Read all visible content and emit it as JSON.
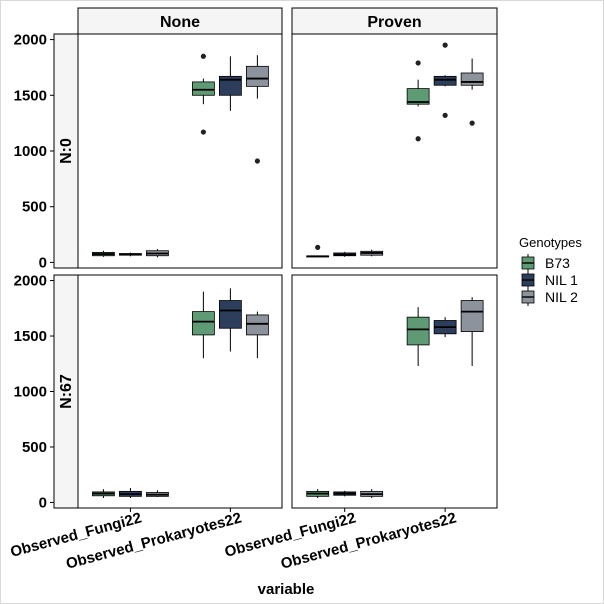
{
  "chart_data": {
    "type": "box",
    "xlabel": "variable",
    "facet_cols": [
      "None",
      "Proven"
    ],
    "facet_rows": [
      "N:0",
      "N:67"
    ],
    "categories": [
      "Observed_Fungi22",
      "Observed_Prokaryotes22"
    ],
    "y_ticks": [
      0,
      500,
      1000,
      1500,
      2000
    ],
    "ylim": [
      -50,
      2050
    ],
    "legend": {
      "title": "Genotypes",
      "position": "right",
      "entries": [
        {
          "name": "B73",
          "color": "#5e9a74"
        },
        {
          "name": "NIL 1",
          "color": "#2c3e5c"
        },
        {
          "name": "NIL 2",
          "color": "#8d939c"
        }
      ]
    },
    "panels": [
      {
        "col": "None",
        "row": "N:0",
        "boxes": [
          {
            "category": "Observed_Fungi22",
            "genotype": "B73",
            "min": 50,
            "q1": 60,
            "median": 75,
            "q3": 90,
            "max": 105,
            "outliers": []
          },
          {
            "category": "Observed_Fungi22",
            "genotype": "NIL 1",
            "min": 55,
            "q1": 65,
            "median": 72,
            "q3": 80,
            "max": 88,
            "outliers": []
          },
          {
            "category": "Observed_Fungi22",
            "genotype": "NIL 2",
            "min": 45,
            "q1": 60,
            "median": 80,
            "q3": 105,
            "max": 120,
            "outliers": []
          },
          {
            "category": "Observed_Prokaryotes22",
            "genotype": "B73",
            "min": 1420,
            "q1": 1500,
            "median": 1550,
            "q3": 1620,
            "max": 1650,
            "outliers": [
              1850,
              1170
            ]
          },
          {
            "category": "Observed_Prokaryotes22",
            "genotype": "NIL 1",
            "min": 1360,
            "q1": 1500,
            "median": 1640,
            "q3": 1670,
            "max": 1850,
            "outliers": []
          },
          {
            "category": "Observed_Prokaryotes22",
            "genotype": "NIL 2",
            "min": 1470,
            "q1": 1580,
            "median": 1650,
            "q3": 1760,
            "max": 1860,
            "outliers": [
              910
            ]
          }
        ]
      },
      {
        "col": "Proven",
        "row": "N:0",
        "boxes": [
          {
            "category": "Observed_Fungi22",
            "genotype": "B73",
            "min": 55,
            "q1": 55,
            "median": 55,
            "q3": 58,
            "max": 60,
            "outliers": [
              135
            ]
          },
          {
            "category": "Observed_Fungi22",
            "genotype": "NIL 1",
            "min": 50,
            "q1": 60,
            "median": 70,
            "q3": 85,
            "max": 95,
            "outliers": []
          },
          {
            "category": "Observed_Fungi22",
            "genotype": "NIL 2",
            "min": 55,
            "q1": 65,
            "median": 85,
            "q3": 100,
            "max": 115,
            "outliers": []
          },
          {
            "category": "Observed_Prokaryotes22",
            "genotype": "B73",
            "min": 1400,
            "q1": 1420,
            "median": 1440,
            "q3": 1560,
            "max": 1640,
            "outliers": [
              1790,
              1110
            ]
          },
          {
            "category": "Observed_Prokaryotes22",
            "genotype": "NIL 1",
            "min": 1580,
            "q1": 1590,
            "median": 1640,
            "q3": 1670,
            "max": 1680,
            "outliers": [
              1950,
              1320
            ]
          },
          {
            "category": "Observed_Prokaryotes22",
            "genotype": "NIL 2",
            "min": 1550,
            "q1": 1590,
            "median": 1620,
            "q3": 1700,
            "max": 1830,
            "outliers": [
              1250
            ]
          }
        ]
      },
      {
        "col": "None",
        "row": "N:67",
        "boxes": [
          {
            "category": "Observed_Fungi22",
            "genotype": "B73",
            "min": 40,
            "q1": 60,
            "median": 80,
            "q3": 95,
            "max": 120,
            "outliers": []
          },
          {
            "category": "Observed_Fungi22",
            "genotype": "NIL 1",
            "min": 40,
            "q1": 55,
            "median": 75,
            "q3": 100,
            "max": 130,
            "outliers": []
          },
          {
            "category": "Observed_Fungi22",
            "genotype": "NIL 2",
            "min": 50,
            "q1": 55,
            "median": 70,
            "q3": 90,
            "max": 110,
            "outliers": []
          },
          {
            "category": "Observed_Prokaryotes22",
            "genotype": "B73",
            "min": 1300,
            "q1": 1510,
            "median": 1630,
            "q3": 1720,
            "max": 1900,
            "outliers": []
          },
          {
            "category": "Observed_Prokaryotes22",
            "genotype": "NIL 1",
            "min": 1360,
            "q1": 1570,
            "median": 1730,
            "q3": 1820,
            "max": 1930,
            "outliers": []
          },
          {
            "category": "Observed_Prokaryotes22",
            "genotype": "NIL 2",
            "min": 1300,
            "q1": 1510,
            "median": 1610,
            "q3": 1690,
            "max": 1720,
            "outliers": []
          }
        ]
      },
      {
        "col": "Proven",
        "row": "N:67",
        "boxes": [
          {
            "category": "Observed_Fungi22",
            "genotype": "B73",
            "min": 40,
            "q1": 55,
            "median": 80,
            "q3": 100,
            "max": 120,
            "outliers": []
          },
          {
            "category": "Observed_Fungi22",
            "genotype": "NIL 1",
            "min": 55,
            "q1": 65,
            "median": 80,
            "q3": 95,
            "max": 105,
            "outliers": []
          },
          {
            "category": "Observed_Fungi22",
            "genotype": "NIL 2",
            "min": 40,
            "q1": 55,
            "median": 75,
            "q3": 100,
            "max": 120,
            "outliers": []
          },
          {
            "category": "Observed_Prokaryotes22",
            "genotype": "B73",
            "min": 1230,
            "q1": 1420,
            "median": 1560,
            "q3": 1670,
            "max": 1760,
            "outliers": []
          },
          {
            "category": "Observed_Prokaryotes22",
            "genotype": "NIL 1",
            "min": 1490,
            "q1": 1520,
            "median": 1580,
            "q3": 1640,
            "max": 1670,
            "outliers": []
          },
          {
            "category": "Observed_Prokaryotes22",
            "genotype": "NIL 2",
            "min": 1230,
            "q1": 1540,
            "median": 1720,
            "q3": 1820,
            "max": 1850,
            "outliers": []
          }
        ]
      }
    ]
  }
}
